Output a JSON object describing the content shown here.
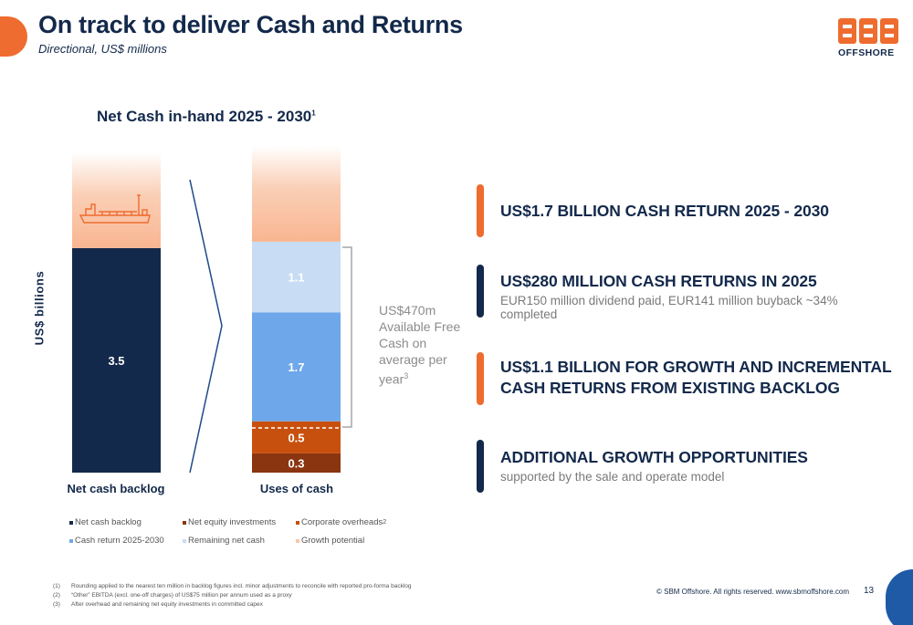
{
  "slide": {
    "title": "On track to deliver Cash and Returns",
    "subtitle": "Directional, US$ millions",
    "logo_text": "OFFSHORE",
    "logo_alt": "SBM",
    "page_number": "13",
    "copyright": "© SBM Offshore. All rights reserved. www.sbmoffshore.com"
  },
  "chart": {
    "title": "Net Cash in-hand 2025 - 2030",
    "title_sup": "1",
    "ylabel": "US$ billions",
    "fcf_note": "US$470m Available Free Cash on average per year",
    "fcf_note_sup": "3",
    "legend": [
      {
        "label": "Net cash backlog",
        "color": "#13294b",
        "sup": ""
      },
      {
        "label": "Net equity investments",
        "color": "#8a3510",
        "sup": ""
      },
      {
        "label": "Corporate overheads",
        "color": "#c8500e",
        "sup": "2"
      },
      {
        "label": "Cash return 2025-2030",
        "color": "#6ea7ea",
        "sup": ""
      },
      {
        "label": "Remaining net cash",
        "color": "#c8dcf4",
        "sup": ""
      },
      {
        "label": "Growth potential",
        "color": "#f9c6a8",
        "sup": ""
      }
    ]
  },
  "chart_data": {
    "type": "bar",
    "categories": [
      "Net cash backlog",
      "Uses of cash"
    ],
    "ylabel": "US$ billions",
    "series": [
      {
        "name": "Net cash backlog",
        "color": "#13294b",
        "values": [
          3.5,
          null
        ],
        "label": "3.5"
      },
      {
        "name": "Net equity investments",
        "color": "#8a3510",
        "values": [
          null,
          0.3
        ],
        "label": "0.3"
      },
      {
        "name": "Corporate overheads",
        "color": "#c8500e",
        "values": [
          null,
          0.5
        ],
        "label": "0.5"
      },
      {
        "name": "Cash return 2025-2030",
        "color": "#6ea7ea",
        "values": [
          null,
          1.7
        ],
        "label": "1.7"
      },
      {
        "name": "Remaining net cash",
        "color": "#c8dcf4",
        "values": [
          null,
          1.1
        ],
        "label": "1.1"
      },
      {
        "name": "Growth potential",
        "color": "#f9c6a8",
        "values": [
          1.5,
          1.5
        ],
        "label": ""
      }
    ],
    "stacked": true,
    "ylim": [
      0,
      5
    ]
  },
  "callouts": [
    {
      "color": "#ee6c2f",
      "head": "US$1.7 BILLION CASH RETURN 2025 - 2030",
      "sub": ""
    },
    {
      "color": "#13294b",
      "head": "US$280 MILLION CASH RETURNS IN 2025",
      "sub": "EUR150 million dividend paid, EUR141 million buyback ~34% completed"
    },
    {
      "color": "#ee6c2f",
      "head": "US$1.1 BILLION FOR GROWTH AND INCREMENTAL CASH RETURNS FROM EXISTING BACKLOG",
      "sub": ""
    },
    {
      "color": "#13294b",
      "head": "ADDITIONAL GROWTH OPPORTUNITIES",
      "sub": "supported by the sale and operate model"
    }
  ],
  "footnotes": [
    {
      "num": "(1)",
      "text": "Rounding applied to the nearest ten million in backlog figures incl. minor adjustments to reconcile with reported pro-forma backlog"
    },
    {
      "num": "(2)",
      "text": "“Other” EBITDA (excl. one-off charges) of US$75 million per annum used as a proxy"
    },
    {
      "num": "(3)",
      "text": "After overhead and remaining net equity investments in committed capex"
    }
  ]
}
